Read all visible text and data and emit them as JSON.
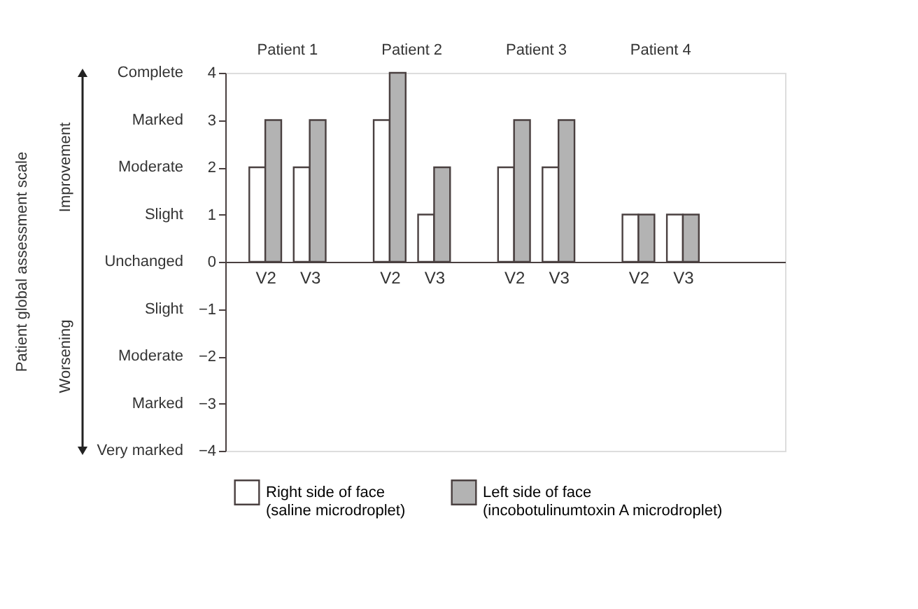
{
  "chart_data": {
    "type": "bar",
    "categories": [
      "V2",
      "V3",
      "V2",
      "V3",
      "V2",
      "V3",
      "V2",
      "V3"
    ],
    "series": [
      {
        "name": "Right side of face\n(saline microdroplet)",
        "color": "#ffffff",
        "values": [
          2,
          2,
          3,
          1,
          2,
          2,
          1,
          1
        ]
      },
      {
        "name": "Left side of face\n(incobotulinumtoxin A microdroplet)",
        "color": "#b3b3b3",
        "values": [
          3,
          3,
          4,
          2,
          3,
          3,
          1,
          1
        ]
      }
    ],
    "ylim": [
      -4,
      4
    ],
    "yticks": [
      -4,
      -3,
      -2,
      -1,
      0,
      1,
      2,
      3,
      4
    ],
    "annotations": [
      "Patient 1",
      "Patient 2",
      "Patient 3",
      "Patient 4",
      "Improvement",
      "Worsening",
      "Patient global assessment scale",
      "Very marked",
      "Marked",
      "Moderate",
      "Slight",
      "Unchanged",
      "Slight",
      "Moderate",
      "Marked",
      "Complete"
    ],
    "grid": false,
    "legend": "bottom"
  }
}
